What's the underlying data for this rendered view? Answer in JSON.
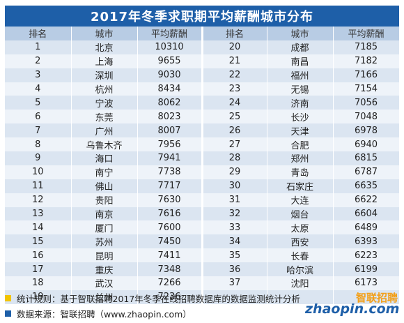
{
  "title": "2017年冬季求职期平均薪酬城市分布",
  "headers": [
    "排名",
    "城市",
    "平均薪酬",
    "排名",
    "城市",
    "平均薪酬"
  ],
  "rows": [
    {
      "l": [
        "1",
        "北京",
        "10310"
      ],
      "r": [
        "20",
        "成都",
        "7185"
      ]
    },
    {
      "l": [
        "2",
        "上海",
        "9655"
      ],
      "r": [
        "21",
        "南昌",
        "7182"
      ]
    },
    {
      "l": [
        "3",
        "深圳",
        "9030"
      ],
      "r": [
        "22",
        "福州",
        "7166"
      ]
    },
    {
      "l": [
        "4",
        "杭州",
        "8434"
      ],
      "r": [
        "23",
        "无锡",
        "7154"
      ]
    },
    {
      "l": [
        "5",
        "宁波",
        "8062"
      ],
      "r": [
        "24",
        "济南",
        "7056"
      ]
    },
    {
      "l": [
        "6",
        "东莞",
        "8023"
      ],
      "r": [
        "25",
        "长沙",
        "7048"
      ]
    },
    {
      "l": [
        "7",
        "广州",
        "8007"
      ],
      "r": [
        "26",
        "天津",
        "6978"
      ]
    },
    {
      "l": [
        "8",
        "乌鲁木齐",
        "7956"
      ],
      "r": [
        "27",
        "合肥",
        "6940"
      ]
    },
    {
      "l": [
        "9",
        "海口",
        "7941"
      ],
      "r": [
        "28",
        "郑州",
        "6815"
      ]
    },
    {
      "l": [
        "10",
        "南宁",
        "7738"
      ],
      "r": [
        "29",
        "青岛",
        "6787"
      ]
    },
    {
      "l": [
        "11",
        "佛山",
        "7717"
      ],
      "r": [
        "30",
        "石家庄",
        "6635"
      ]
    },
    {
      "l": [
        "12",
        "贵阳",
        "7630"
      ],
      "r": [
        "31",
        "大连",
        "6622"
      ]
    },
    {
      "l": [
        "13",
        "南京",
        "7616"
      ],
      "r": [
        "32",
        "烟台",
        "6604"
      ]
    },
    {
      "l": [
        "14",
        "厦门",
        "7600"
      ],
      "r": [
        "33",
        "太原",
        "6489"
      ]
    },
    {
      "l": [
        "15",
        "苏州",
        "7450"
      ],
      "r": [
        "34",
        "西安",
        "6393"
      ]
    },
    {
      "l": [
        "16",
        "昆明",
        "7411"
      ],
      "r": [
        "35",
        "长春",
        "6223"
      ]
    },
    {
      "l": [
        "17",
        "重庆",
        "7348"
      ],
      "r": [
        "36",
        "哈尔滨",
        "6199"
      ]
    },
    {
      "l": [
        "18",
        "武汉",
        "7266"
      ],
      "r": [
        "37",
        "沈阳",
        "6173"
      ]
    },
    {
      "l": [
        "19",
        "兰州",
        "7236"
      ],
      "r": [
        "",
        "",
        ""
      ]
    }
  ],
  "notes": [
    {
      "text": "统计规则：基于智联招聘2017年冬季在线招聘数据库的数据监测统计分析",
      "color": "#f2c400"
    },
    {
      "text": "数据来源：智联招聘（www.zhaopin.com）",
      "color": "#1e5fa8"
    }
  ],
  "logo": {
    "en": "zhaopin.com",
    "cn": "智联招聘"
  }
}
